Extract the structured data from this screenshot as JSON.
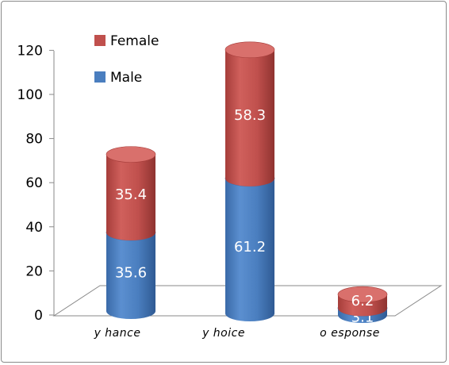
{
  "chart_data": {
    "type": "bar",
    "stacked": true,
    "style": "3d-cylinder",
    "categories": [
      "y hance",
      "y hoice",
      "o esponse"
    ],
    "series": [
      {
        "name": "Male",
        "values": [
          35.6,
          61.2,
          3.1
        ],
        "color": "#4a7ebf"
      },
      {
        "name": "Female",
        "values": [
          35.4,
          58.3,
          6.2
        ],
        "color": "#c0504d"
      }
    ],
    "y_ticks": [
      "0",
      "20",
      "40",
      "60",
      "80",
      "100",
      "120"
    ],
    "ylim": [
      0,
      120
    ],
    "legend_position": "top-left",
    "grid": false
  }
}
